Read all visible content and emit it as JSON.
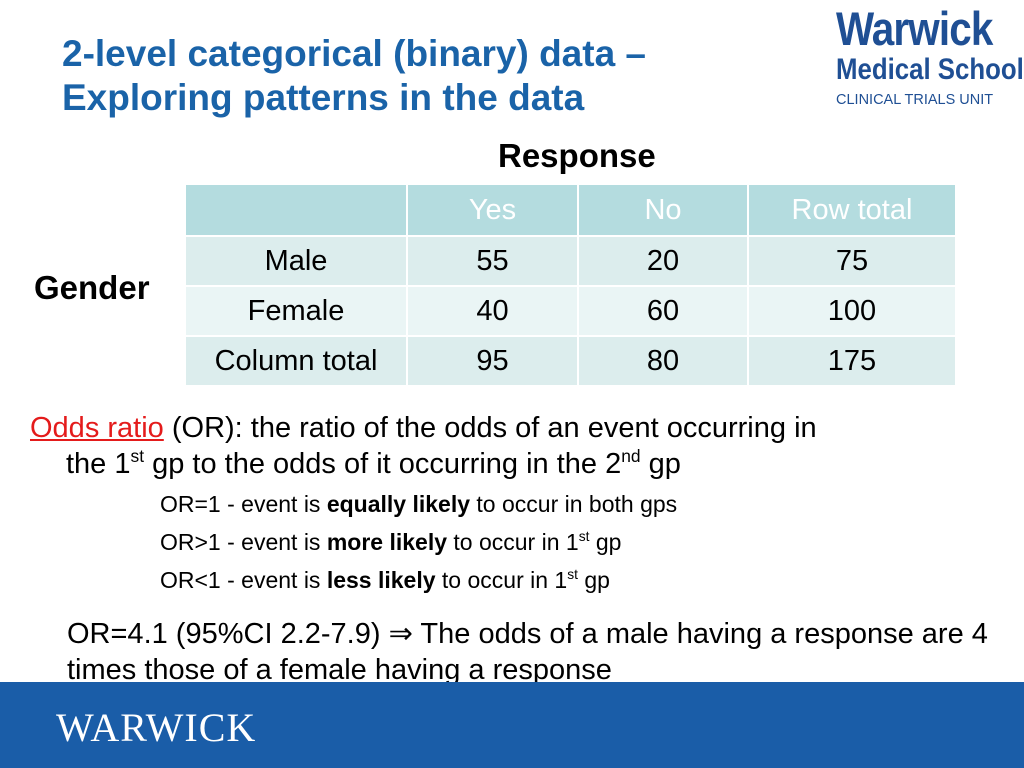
{
  "title": {
    "line1": "2-level categorical (binary) data –",
    "line2": "Exploring patterns in the data"
  },
  "logo": {
    "line1": "Warwick",
    "line2": "Medical School",
    "line3": "CLINICAL TRIALS UNIT"
  },
  "response_label": "Response",
  "gender_label": "Gender",
  "table": {
    "headers": [
      "",
      "Yes",
      "No",
      "Row total"
    ],
    "rows": [
      [
        "Male",
        "55",
        "20",
        "75"
      ],
      [
        "Female",
        "40",
        "60",
        "100"
      ],
      [
        "Column total",
        "95",
        "80",
        "175"
      ]
    ]
  },
  "definition": {
    "term": "Odds ratio",
    "text1": " (OR): the ratio of the odds of an event occurring in",
    "text2a": "the 1",
    "sup1": "st",
    "text2b": " gp to the odds of it occurring in the 2",
    "sup2": "nd",
    "text2c": " gp"
  },
  "bullets": [
    {
      "pre": "OR=1 - event is ",
      "bold": "equally likely",
      "post": " to occur in both gps",
      "sup": "",
      "tail": ""
    },
    {
      "pre": "OR>1 - event is ",
      "bold": "more likely",
      "post": " to occur in 1",
      "sup": "st",
      "tail": " gp"
    },
    {
      "pre": "OR<1 - event is ",
      "bold": "less likely",
      "post": " to occur in 1",
      "sup": "st",
      "tail": " gp"
    }
  ],
  "conclusion": {
    "part1": "OR=4.1 (95%CI 2.2-7.9) ",
    "arrow": "⇒",
    "part2": " The odds of a male having a response are 4 times those of a female having a response"
  },
  "footer": {
    "logo_text": "WARWICK"
  },
  "colors": {
    "title": "#1a63a8",
    "header_fill": "#b4dcdf",
    "row_fill_light": "#eaf5f5",
    "row_fill_mid": "#dceded",
    "term": "#e41b1b",
    "footer": "#1a5da8"
  }
}
